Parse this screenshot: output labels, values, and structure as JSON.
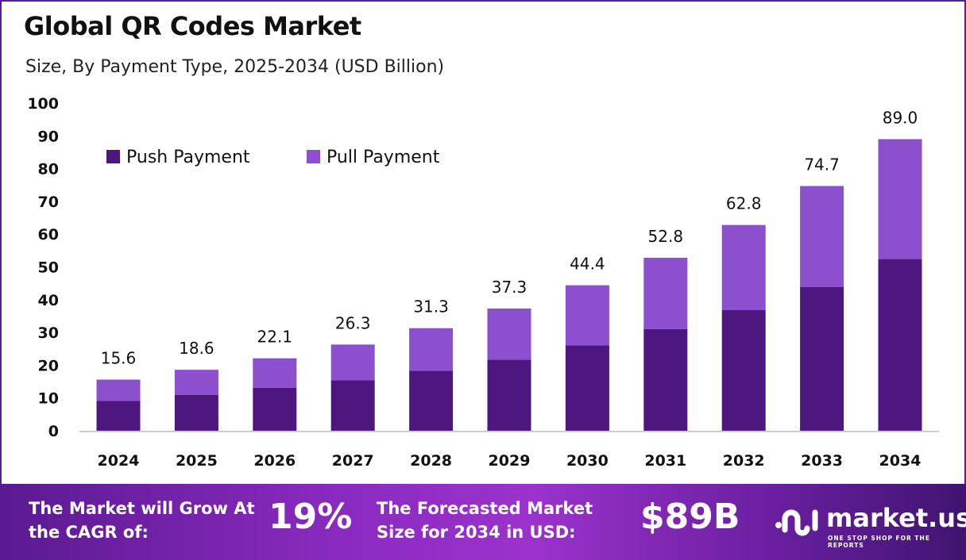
{
  "chart_data": {
    "type": "bar",
    "stacked": true,
    "title": "Global QR Codes Market",
    "subtitle": "Size, By Payment Type, 2025-2034 (USD Billion)",
    "categories": [
      "2024",
      "2025",
      "2026",
      "2027",
      "2028",
      "2029",
      "2030",
      "2031",
      "2032",
      "2033",
      "2034"
    ],
    "series": [
      {
        "name": "Push Payment",
        "color": "#4e1780",
        "values": [
          9.1,
          10.9,
          13.1,
          15.4,
          18.3,
          21.7,
          26.1,
          31.0,
          36.8,
          43.9,
          52.4
        ]
      },
      {
        "name": "Pull Payment",
        "color": "#8c4fcd",
        "values": [
          6.5,
          7.7,
          9.0,
          10.9,
          13.0,
          15.6,
          18.3,
          21.8,
          26.0,
          30.8,
          36.6
        ]
      }
    ],
    "totals": [
      "15.6",
      "18.6",
      "22.1",
      "26.3",
      "31.3",
      "37.3",
      "44.4",
      "52.8",
      "62.8",
      "74.7",
      "89.0"
    ],
    "yticks": [
      "0",
      "10",
      "20",
      "30",
      "40",
      "50",
      "60",
      "70",
      "80",
      "90",
      "100"
    ],
    "ylim": [
      0,
      100
    ],
    "grid": false,
    "legend": "top-left"
  },
  "banner": {
    "cagr_text": "The Market will Grow At the CAGR of:",
    "cagr_value": "19%",
    "forecast_text": "The Forecasted Market Size for 2034 in USD:",
    "forecast_value": "$89B",
    "logo_name": "market.us",
    "logo_tagline": "ONE STOP SHOP FOR THE REPORTS"
  }
}
